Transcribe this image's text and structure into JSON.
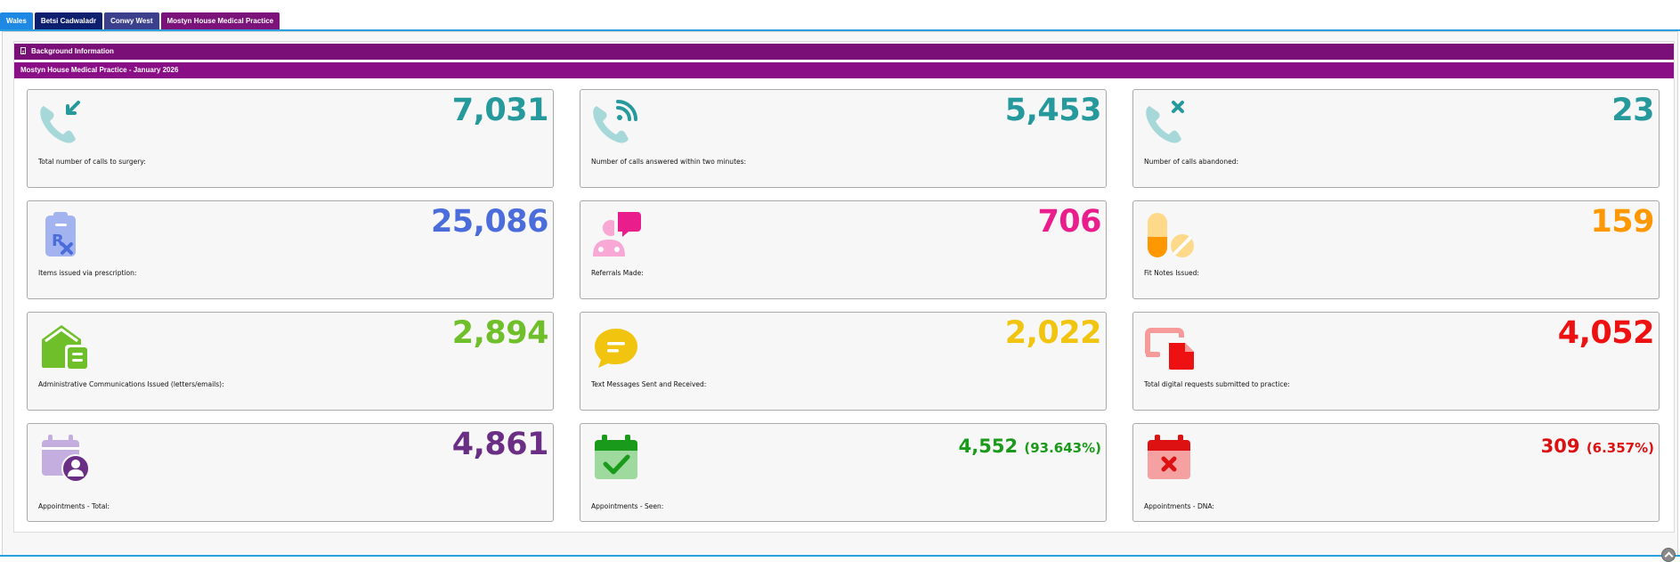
{
  "tabs": [
    {
      "label": "Wales"
    },
    {
      "label": "Betsi Cadwaladr"
    },
    {
      "label": "Conwy West"
    },
    {
      "label": "Mostyn House Medical Practice"
    }
  ],
  "sections": {
    "background": "Background Information",
    "practice": "Mostyn House Medical Practice - January 2026"
  },
  "cards": [
    {
      "value": "7,031",
      "label": "Total number of calls to surgery:",
      "icon": "phone-incoming-icon",
      "color": "#25999c"
    },
    {
      "value": "5,453",
      "label": "Number of calls answered within two minutes:",
      "icon": "phone-signal-icon",
      "color": "#25999c"
    },
    {
      "value": "23",
      "label": "Number of calls abandoned:",
      "icon": "phone-missed-icon",
      "color": "#25999c"
    },
    {
      "value": "25,086",
      "label": "Items issued via prescription:",
      "icon": "prescription-clipboard-icon",
      "color": "#4a6ddb"
    },
    {
      "value": "706",
      "label": "Referrals Made:",
      "icon": "referral-speech-icon",
      "color": "#e91e8c"
    },
    {
      "value": "159",
      "label": "Fit Notes Issued:",
      "icon": "pills-icon",
      "color": "#ff9800"
    },
    {
      "value": "2,894",
      "label": "Administrative Communications Issued (letters/emails):",
      "icon": "mail-letter-icon",
      "color": "#6fbf2a"
    },
    {
      "value": "2,022",
      "label": "Text Messages Sent and Received:",
      "icon": "chat-bubble-icon",
      "color": "#f1c40f"
    },
    {
      "value": "4,052",
      "label": "Total digital requests submitted to practice:",
      "icon": "digital-request-icon",
      "color": "#ee1111"
    },
    {
      "value": "4,861",
      "label": "Appointments - Total:",
      "icon": "calendar-user-icon",
      "color": "#6a2f85"
    },
    {
      "value": "4,552",
      "pct": "(93.643%)",
      "label": "Appointments - Seen:",
      "icon": "calendar-check-icon",
      "color": "#1a9a1a"
    },
    {
      "value": "309",
      "pct": "(6.357%)",
      "label": "Appointments - DNA:",
      "icon": "calendar-x-icon",
      "color": "#dd1111"
    }
  ]
}
